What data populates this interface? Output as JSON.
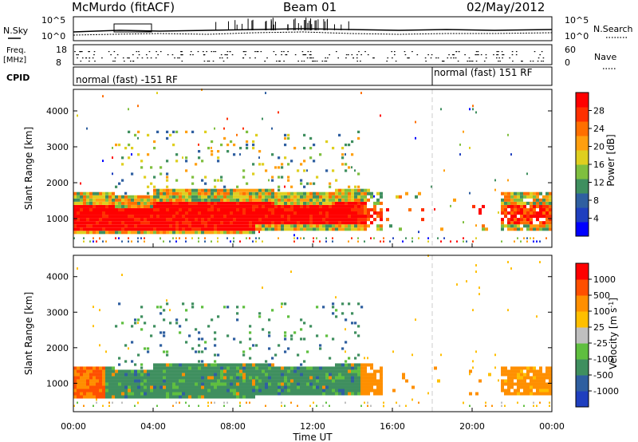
{
  "header": {
    "station": "McMurdo (fitACF)",
    "beam": "Beam 01",
    "date": "02/May/2012"
  },
  "noise_panel": {
    "left_label": "N.Sky",
    "right_label": "N.Search",
    "tick_top": "10^5",
    "tick_bottom": "10^0"
  },
  "freq_panel": {
    "left_label_line1": "Freq.",
    "left_label_line2": "[MHz]",
    "right_label": "Nave",
    "left_tick_top": "18",
    "left_tick_bottom": "8",
    "right_tick_top": "60",
    "right_tick_bottom": "0"
  },
  "cpid_panel": {
    "label": "CPID",
    "segments": [
      {
        "text": "normal (fast) -151 RF",
        "start_hour": 0
      },
      {
        "text": "normal (fast) 151 RF",
        "start_hour": 18.05
      }
    ]
  },
  "chart_data": [
    {
      "type": "heatmap",
      "name": "Power",
      "ylabel": "Slant Range [km]",
      "xlabel": "Time UT",
      "x_ticks": [
        "00:00",
        "04:00",
        "08:00",
        "12:00",
        "16:00",
        "20:00",
        "00:00"
      ],
      "x_range_hours": [
        0,
        24
      ],
      "y_ticks": [
        1000,
        2000,
        3000,
        4000
      ],
      "ylim": [
        200,
        4600
      ],
      "colorbar": {
        "label": "Power [dB]",
        "ticks": [
          "4",
          "8",
          "12",
          "16",
          "20",
          "24",
          "28"
        ],
        "colors": [
          "#0000ff",
          "#1f3fbf",
          "#2f5fa0",
          "#3f8f5f",
          "#7fbf3f",
          "#dfcf1f",
          "#ff9f0f",
          "#ff6f00",
          "#ff3000",
          "#ff0000"
        ]
      }
    },
    {
      "type": "heatmap",
      "name": "Velocity",
      "ylabel": "Slant Range [km]",
      "xlabel": "Time UT",
      "x_ticks": [
        "00:00",
        "04:00",
        "08:00",
        "12:00",
        "16:00",
        "20:00",
        "00:00"
      ],
      "x_range_hours": [
        0,
        24
      ],
      "y_ticks": [
        1000,
        2000,
        3000,
        4000
      ],
      "ylim": [
        200,
        4600
      ],
      "colorbar": {
        "label": "Velocity [m s^-1]",
        "ticks": [
          "1000",
          "500",
          "100",
          "25",
          "-25",
          "-100",
          "-500",
          "-1000"
        ],
        "colors": [
          "#1f3fbf",
          "#2f5fa0",
          "#3f8f5f",
          "#5fbf3f",
          "#bfbfbf",
          "#ffbf00",
          "#ff8f00",
          "#ff4f00",
          "#ff0000"
        ]
      }
    }
  ]
}
